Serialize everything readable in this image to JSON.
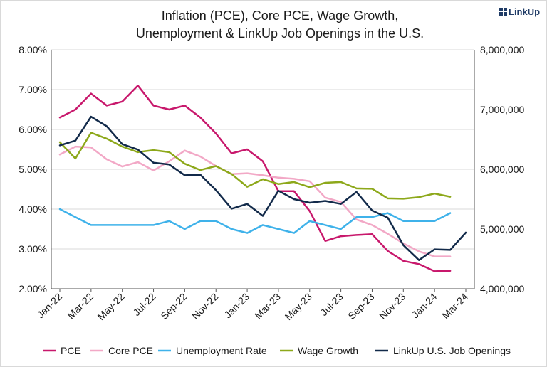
{
  "header": {
    "title_line1": "Inflation (PCE), Core PCE, Wage Growth,",
    "title_line2": "Unemployment & LinkUp Job Openings in the U.S.",
    "logo_text": "LinkUp",
    "logo_icon": "grid-icon"
  },
  "chart_data": {
    "type": "line",
    "title": "Inflation (PCE), Core PCE, Wage Growth, Unemployment & LinkUp Job Openings in the U.S.",
    "x": [
      "Jan-22",
      "Feb-22",
      "Mar-22",
      "Apr-22",
      "May-22",
      "Jun-22",
      "Jul-22",
      "Aug-22",
      "Sep-22",
      "Oct-22",
      "Nov-22",
      "Dec-22",
      "Jan-23",
      "Feb-23",
      "Mar-23",
      "Apr-23",
      "May-23",
      "Jun-23",
      "Jul-23",
      "Aug-23",
      "Sep-23",
      "Oct-23",
      "Nov-23",
      "Dec-23",
      "Jan-24",
      "Feb-24",
      "Mar-24"
    ],
    "x_tick_labels": [
      "Jan-22",
      "Mar-22",
      "May-22",
      "Jul-22",
      "Sep-22",
      "Nov-22",
      "Jan-23",
      "Mar-23",
      "May-23",
      "Jul-23",
      "Sep-23",
      "Nov-23",
      "Jan-24",
      "Mar-24"
    ],
    "y_left": {
      "ticks": [
        "2.00%",
        "3.00%",
        "4.00%",
        "5.00%",
        "6.00%",
        "7.00%",
        "8.00%"
      ],
      "min": 2.0,
      "max": 8.0,
      "step": 1.0,
      "unit": "%"
    },
    "y_right": {
      "ticks": [
        "4,000,000",
        "5,000,000",
        "6,000,000",
        "7,000,000",
        "8,000,000"
      ],
      "min": 4000000,
      "max": 8000000,
      "step": 1000000
    },
    "grid": true,
    "legend_position": "bottom",
    "series": [
      {
        "name": "PCE",
        "axis": "left",
        "color": "#c8186c",
        "values": [
          6.3,
          6.5,
          6.9,
          6.6,
          6.7,
          7.1,
          6.6,
          6.5,
          6.6,
          6.3,
          5.9,
          5.4,
          5.5,
          5.2,
          4.45,
          4.45,
          3.95,
          3.2,
          3.32,
          3.35,
          3.37,
          2.95,
          2.7,
          2.62,
          2.44,
          2.45,
          null
        ]
      },
      {
        "name": "Core PCE",
        "axis": "left",
        "color": "#f2a8c6",
        "values": [
          5.37,
          5.57,
          5.55,
          5.25,
          5.07,
          5.18,
          4.97,
          5.2,
          5.47,
          5.32,
          5.08,
          4.88,
          4.9,
          4.85,
          4.79,
          4.76,
          4.7,
          4.29,
          4.18,
          3.74,
          3.6,
          3.38,
          3.14,
          2.94,
          2.81,
          2.81,
          null
        ]
      },
      {
        "name": "Unemployment Rate",
        "axis": "left",
        "color": "#3fb2ea",
        "values": [
          4.0,
          3.8,
          3.6,
          3.6,
          3.6,
          3.6,
          3.6,
          3.7,
          3.5,
          3.7,
          3.7,
          3.5,
          3.4,
          3.6,
          3.5,
          3.4,
          3.7,
          3.6,
          3.5,
          3.8,
          3.8,
          3.9,
          3.7,
          3.7,
          3.7,
          3.9,
          null
        ]
      },
      {
        "name": "Wage Growth",
        "axis": "left",
        "color": "#8da81a",
        "values": [
          5.68,
          5.27,
          5.92,
          5.77,
          5.57,
          5.43,
          5.48,
          5.43,
          5.14,
          4.98,
          5.08,
          4.88,
          4.56,
          4.75,
          4.63,
          4.68,
          4.55,
          4.66,
          4.68,
          4.52,
          4.51,
          4.27,
          4.26,
          4.3,
          4.39,
          4.31,
          null
        ]
      },
      {
        "name": "LinkUp U.S. Job Openings",
        "axis": "right",
        "color": "#122a4a",
        "values": [
          6400000,
          6480000,
          6880000,
          6720000,
          6420000,
          6330000,
          6110000,
          6080000,
          5900000,
          5910000,
          5650000,
          5340000,
          5420000,
          5220000,
          5640000,
          5500000,
          5440000,
          5470000,
          5420000,
          5620000,
          5310000,
          5190000,
          4730000,
          4480000,
          4660000,
          4650000,
          4940000
        ]
      }
    ]
  }
}
